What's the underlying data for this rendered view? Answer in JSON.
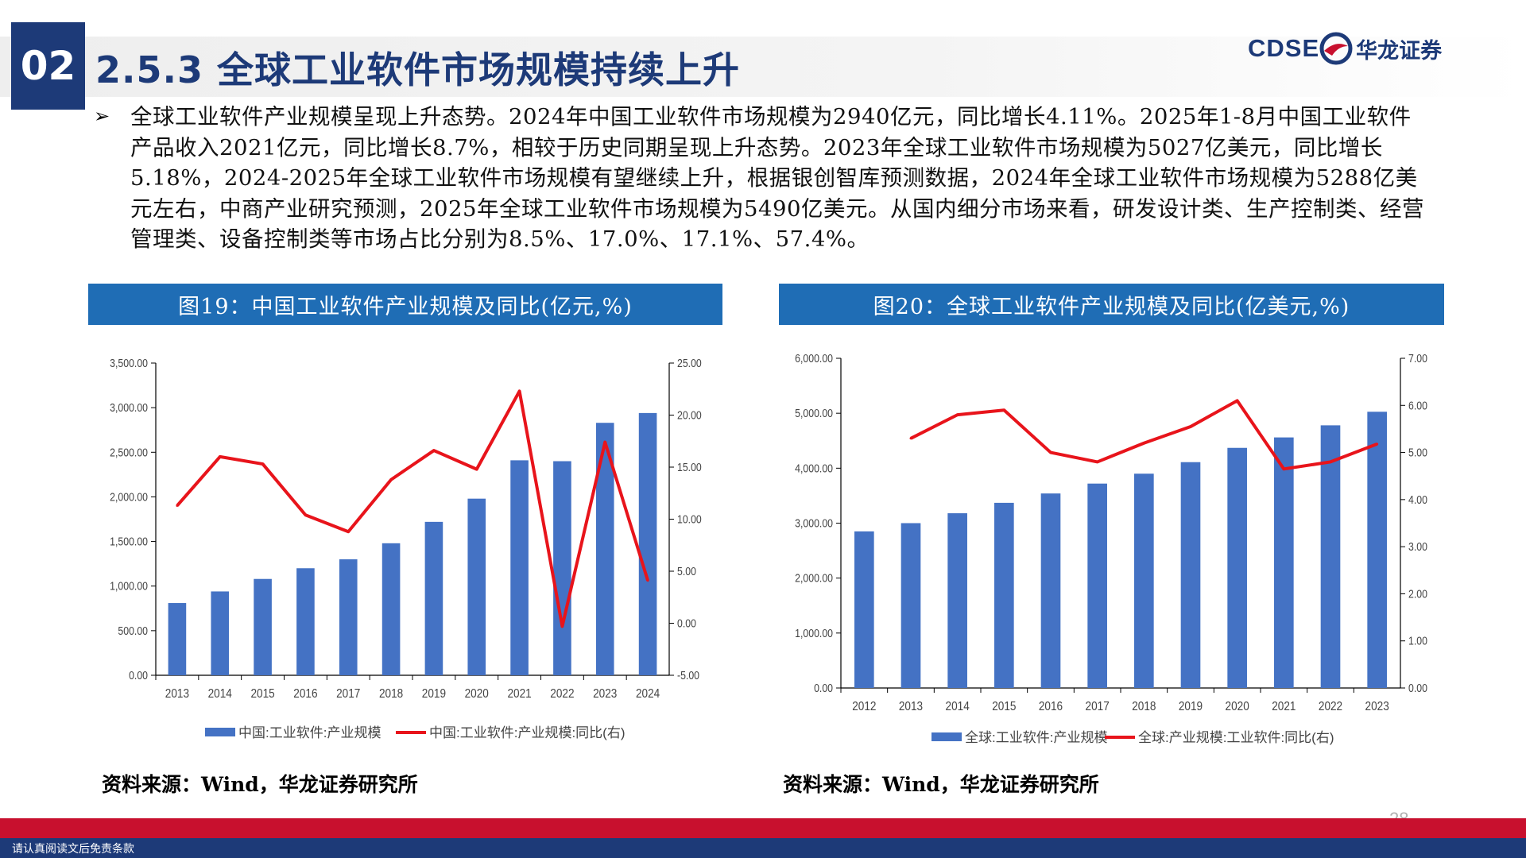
{
  "header": {
    "section_number": "02",
    "title": "2.5.3 全球工业软件市场规模持续上升",
    "logo_latin": "CDSE",
    "logo_cn": "华龙证券",
    "colors": {
      "primary": "#1d3a78",
      "accent_red": "#c8102e",
      "figure_header": "#1f6db5"
    }
  },
  "bullet_symbol": "➢",
  "paragraph": "全球工业软件产业规模呈现上升态势。2024年中国工业软件市场规模为2940亿元，同比增长4.11%。2025年1-8月中国工业软件产品收入2021亿元，同比增长8.7%，相较于历史同期呈现上升态势。2023年全球工业软件市场规模为5027亿美元，同比增长5.18%，2024-2025年全球工业软件市场规模有望继续上升，根据银创智库预测数据，2024年全球工业软件市场规模为5288亿美元左右，中商产业研究预测，2025年全球工业软件市场规模为5490亿美元。从国内细分市场来看，研发设计类、生产控制类、经营管理类、设备控制类等市场占比分别为8.5%、17.0%、17.1%、57.4%。",
  "figures": [
    {
      "caption": "图19：中国工业软件产业规模及同比(亿元,%)",
      "source": "资料来源：Wind，华龙证券研究所"
    },
    {
      "caption": "图20：全球工业软件产业规模及同比(亿美元,%)",
      "source": "资料来源：Wind，华龙证券研究所"
    }
  ],
  "chart_data": [
    {
      "type": "bar+line",
      "categories": [
        "2013",
        "2014",
        "2015",
        "2016",
        "2017",
        "2018",
        "2019",
        "2020",
        "2021",
        "2022",
        "2023",
        "2024"
      ],
      "series": [
        {
          "name": "中国:工业软件:产业规模",
          "type": "bar",
          "axis": "left",
          "color": "#4472c4",
          "values": [
            810,
            940,
            1080,
            1200,
            1300,
            1480,
            1720,
            1980,
            2410,
            2400,
            2830,
            2940
          ]
        },
        {
          "name": "中国:工业软件:产业规模:同比(右)",
          "type": "line",
          "axis": "right",
          "color": "#e8141b",
          "values": [
            11.3,
            16.0,
            15.3,
            10.4,
            8.8,
            13.8,
            16.6,
            14.8,
            22.3,
            -0.3,
            17.4,
            4.1
          ]
        }
      ],
      "y_left": {
        "min": 0,
        "max": 3500,
        "ticks": [
          "0.00",
          "500.00",
          "1,000.00",
          "1,500.00",
          "2,000.00",
          "2,500.00",
          "3,000.00",
          "3,500.00"
        ]
      },
      "y_right": {
        "min": -5,
        "max": 25,
        "ticks": [
          "-5.00",
          "0.00",
          "5.00",
          "10.00",
          "15.00",
          "20.00",
          "25.00"
        ]
      },
      "legend_position": "bottom"
    },
    {
      "type": "bar+line",
      "categories": [
        "2012",
        "2013",
        "2014",
        "2015",
        "2016",
        "2017",
        "2018",
        "2019",
        "2020",
        "2021",
        "2022",
        "2023"
      ],
      "series": [
        {
          "name": "全球:工业软件:产业规模",
          "type": "bar",
          "axis": "left",
          "color": "#4472c4",
          "values": [
            2850,
            3000,
            3180,
            3370,
            3540,
            3720,
            3900,
            4110,
            4370,
            4560,
            4780,
            5027
          ]
        },
        {
          "name": "全球:产业规模:工业软件:同比(右)",
          "type": "line",
          "axis": "right",
          "color": "#e8141b",
          "values": [
            null,
            5.3,
            5.8,
            5.9,
            5.0,
            4.8,
            5.2,
            5.55,
            6.1,
            4.65,
            4.8,
            5.18
          ]
        }
      ],
      "y_left": {
        "min": 0,
        "max": 6000,
        "ticks": [
          "0.00",
          "1,000.00",
          "2,000.00",
          "3,000.00",
          "4,000.00",
          "5,000.00",
          "6,000.00"
        ]
      },
      "y_right": {
        "min": 0,
        "max": 7,
        "ticks": [
          "0.00",
          "1.00",
          "2.00",
          "3.00",
          "4.00",
          "5.00",
          "6.00",
          "7.00"
        ]
      },
      "legend_position": "bottom"
    }
  ],
  "footer": {
    "page_number": "28",
    "disclaimer": "请认真阅读文后免责条款"
  }
}
